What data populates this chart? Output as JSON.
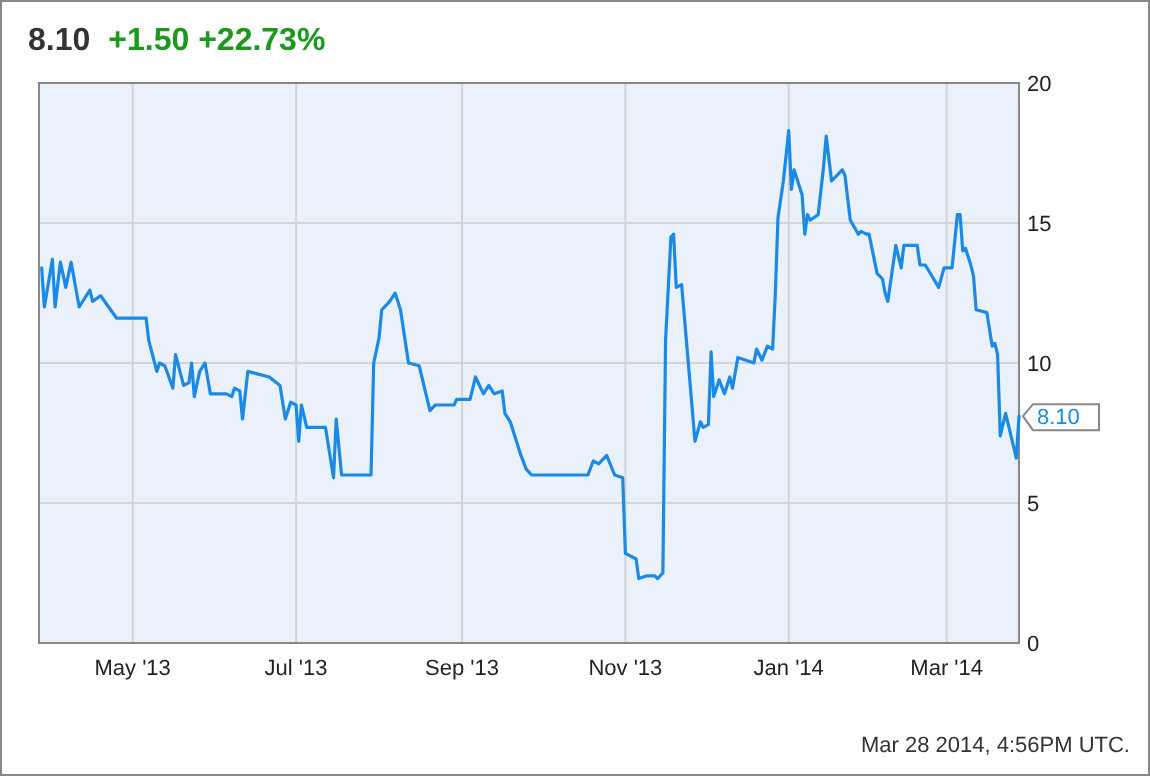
{
  "chart_data": {
    "type": "line",
    "title": "8.10",
    "subtitle": "+1.50 +22.73%",
    "x": [
      "2013-03-28",
      "2013-03-29",
      "2013-04-01",
      "2013-04-02",
      "2013-04-04",
      "2013-04-06",
      "2013-04-08",
      "2013-04-11",
      "2013-04-15",
      "2013-04-16",
      "2013-04-19",
      "2013-04-22",
      "2013-04-25",
      "2013-05-06",
      "2013-05-07",
      "2013-05-10",
      "2013-05-11",
      "2013-05-13",
      "2013-05-16",
      "2013-05-17",
      "2013-05-20",
      "2013-05-22",
      "2013-05-23",
      "2013-05-24",
      "2013-05-26",
      "2013-05-28",
      "2013-05-30",
      "2013-06-05",
      "2013-06-07",
      "2013-06-08",
      "2013-06-10",
      "2013-06-11",
      "2013-06-13",
      "2013-06-21",
      "2013-06-25",
      "2013-06-27",
      "2013-06-29",
      "2013-07-01",
      "2013-07-02",
      "2013-07-03",
      "2013-07-05",
      "2013-07-12",
      "2013-07-15",
      "2013-07-16",
      "2013-07-18",
      "2013-07-29",
      "2013-07-30",
      "2013-08-01",
      "2013-08-02",
      "2013-08-05",
      "2013-08-07",
      "2013-08-09",
      "2013-08-12",
      "2013-08-16",
      "2013-08-20",
      "2013-08-22",
      "2013-08-29",
      "2013-08-30",
      "2013-09-04",
      "2013-09-06",
      "2013-09-09",
      "2013-09-11",
      "2013-09-13",
      "2013-09-16",
      "2013-09-17",
      "2013-09-19",
      "2013-09-23",
      "2013-09-25",
      "2013-09-27",
      "2013-10-18",
      "2013-10-20",
      "2013-10-22",
      "2013-10-25",
      "2013-10-28",
      "2013-10-31",
      "2013-11-01",
      "2013-11-05",
      "2013-11-06",
      "2013-11-09",
      "2013-11-12",
      "2013-11-13",
      "2013-11-15",
      "2013-11-16",
      "2013-11-18",
      "2013-11-19",
      "2013-11-20",
      "2013-11-22",
      "2013-11-27",
      "2013-11-29",
      "2013-11-30",
      "2013-12-02",
      "2013-12-03",
      "2013-12-04",
      "2013-12-06",
      "2013-12-08",
      "2013-12-10",
      "2013-12-11",
      "2013-12-13",
      "2013-12-16",
      "2013-12-19",
      "2013-12-20",
      "2013-12-22",
      "2013-12-24",
      "2013-12-26",
      "2013-12-27",
      "2013-12-28",
      "2013-12-30",
      "2014-01-01",
      "2014-01-02",
      "2014-01-03",
      "2014-01-06",
      "2014-01-07",
      "2014-01-08",
      "2014-01-09",
      "2014-01-12",
      "2014-01-14",
      "2014-01-15",
      "2014-01-17",
      "2014-01-21",
      "2014-01-22",
      "2014-01-24",
      "2014-01-27",
      "2014-01-28",
      "2014-01-30",
      "2014-01-31",
      "2014-02-03",
      "2014-02-05",
      "2014-02-06",
      "2014-02-07",
      "2014-02-10",
      "2014-02-12",
      "2014-02-13",
      "2014-02-18",
      "2014-02-19",
      "2014-02-21",
      "2014-02-26",
      "2014-02-28",
      "2014-03-03",
      "2014-03-05",
      "2014-03-06",
      "2014-03-07",
      "2014-03-08",
      "2014-03-10",
      "2014-03-11",
      "2014-03-12",
      "2014-03-16",
      "2014-03-18",
      "2014-03-19",
      "2014-03-20",
      "2014-03-21",
      "2014-03-23",
      "2014-03-27",
      "2014-03-28"
    ],
    "series": [
      {
        "color": "#1a8ae6",
        "values": [
          13.4,
          12.0,
          13.7,
          12.0,
          13.6,
          12.7,
          13.6,
          12.0,
          12.6,
          12.2,
          12.4,
          12.0,
          11.6,
          11.6,
          10.8,
          9.7,
          10.0,
          9.9,
          9.1,
          10.3,
          9.2,
          9.3,
          10.0,
          8.8,
          9.7,
          10.0,
          8.9,
          8.9,
          8.8,
          9.1,
          9.0,
          8.0,
          9.7,
          9.5,
          9.2,
          8.0,
          8.6,
          8.5,
          7.2,
          8.5,
          7.7,
          7.7,
          5.9,
          8.0,
          6.0,
          6.0,
          10.0,
          10.9,
          11.9,
          12.2,
          12.5,
          11.9,
          10.0,
          9.9,
          8.3,
          8.5,
          8.5,
          8.7,
          8.7,
          9.5,
          8.9,
          9.2,
          8.9,
          9.0,
          8.2,
          7.9,
          6.7,
          6.2,
          6.0,
          6.0,
          6.5,
          6.4,
          6.7,
          6.0,
          5.9,
          3.2,
          3.0,
          2.3,
          2.4,
          2.4,
          2.3,
          2.5,
          10.8,
          14.5,
          14.6,
          12.7,
          12.8,
          7.2,
          7.9,
          7.7,
          7.8,
          10.4,
          8.8,
          9.4,
          8.9,
          9.5,
          9.1,
          10.2,
          10.1,
          10.0,
          10.5,
          10.1,
          10.6,
          10.5,
          12.5,
          15.2,
          16.5,
          18.3,
          16.2,
          16.9,
          16.0,
          14.6,
          15.3,
          15.1,
          15.3,
          17.0,
          18.1,
          16.5,
          16.9,
          16.7,
          15.1,
          14.6,
          14.7,
          14.6,
          14.6,
          13.2,
          13.0,
          12.5,
          12.2,
          14.2,
          13.4,
          14.2,
          14.2,
          13.5,
          13.5,
          12.7,
          13.4,
          13.4,
          15.3,
          15.3,
          14.0,
          14.1,
          13.5,
          13.1,
          11.9,
          11.8,
          10.6,
          10.7,
          10.3,
          7.4,
          8.2,
          6.6,
          8.1
        ]
      }
    ],
    "xlim": [
      "2013-03-27",
      "2014-03-28"
    ],
    "xticks": [
      {
        "value": "2013-05-01",
        "label": "May '13"
      },
      {
        "value": "2013-07-01",
        "label": "Jul '13"
      },
      {
        "value": "2013-09-01",
        "label": "Sep '13"
      },
      {
        "value": "2013-11-01",
        "label": "Nov '13"
      },
      {
        "value": "2014-01-01",
        "label": "Jan '14"
      },
      {
        "value": "2014-03-01",
        "label": "Mar '14"
      }
    ],
    "ylim": [
      0,
      20
    ],
    "yticks": [
      0,
      5,
      10,
      15,
      20
    ],
    "grid": true,
    "marker": "none",
    "line_style": "solid",
    "annotations": [
      {
        "text": "8.10",
        "x": "2014-03-28",
        "y": 8.1
      },
      "Mar 28 2014, 4:56PM UTC."
    ]
  }
}
